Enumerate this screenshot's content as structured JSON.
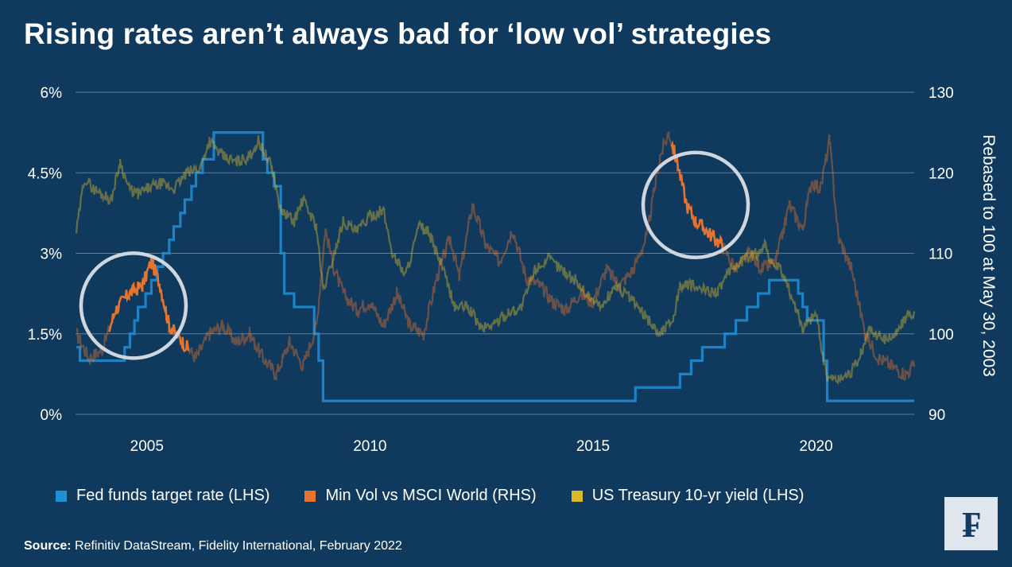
{
  "title": "Rising rates aren’t always bad for ‘low vol’ strategies",
  "source_label": "Source:",
  "source_text": "Refinitiv DataStream, Fidelity International, February 2022",
  "logo_glyph": "₣",
  "colors": {
    "background": "#0f3a5e",
    "gridline": "#5d7f9c",
    "fed_funds": "#1f8fd6",
    "min_vol": "#e8732d",
    "treasury": "#ddb92a",
    "circle": "#cfd6de"
  },
  "chart_data": {
    "type": "line",
    "x_axis": {
      "range": [
        2003.4,
        2022.2
      ],
      "ticks": [
        2005,
        2010,
        2015,
        2020
      ],
      "tick_labels": [
        "2005",
        "2010",
        "2015",
        "2020"
      ]
    },
    "y_left": {
      "range": [
        0,
        6
      ],
      "ticks": [
        0,
        1.5,
        3,
        4.5,
        6
      ],
      "tick_labels": [
        "0%",
        "1.5%",
        "3%",
        "4.5%",
        "6%"
      ]
    },
    "y_right": {
      "range": [
        90,
        130
      ],
      "ticks": [
        90,
        100,
        110,
        120,
        130
      ],
      "tick_labels": [
        "90",
        "100",
        "110",
        "120",
        "130"
      ],
      "label": "Rebased to 100 at May 30, 2003"
    },
    "grid": true,
    "legend_position": "bottom",
    "series": [
      {
        "name": "Fed funds target rate (LHS)",
        "axis": "left",
        "step": true,
        "x": [
          2003.42,
          2003.5,
          2004.5,
          2004.62,
          2004.72,
          2004.8,
          2004.97,
          2005.1,
          2005.23,
          2005.36,
          2005.5,
          2005.6,
          2005.75,
          2005.85,
          2006.0,
          2006.1,
          2006.25,
          2006.5,
          2007.6,
          2007.7,
          2007.85,
          2008.0,
          2008.08,
          2008.3,
          2008.75,
          2008.85,
          2008.95,
          2015.95,
          2016.95,
          2017.2,
          2017.45,
          2017.95,
          2018.2,
          2018.45,
          2018.7,
          2018.95,
          2019.6,
          2019.7,
          2019.8,
          2020.17,
          2020.25,
          2022.2
        ],
        "y": [
          1.25,
          1.0,
          1.25,
          1.5,
          1.75,
          2.0,
          2.25,
          2.5,
          2.75,
          3.0,
          3.25,
          3.5,
          3.75,
          4.0,
          4.25,
          4.5,
          4.75,
          5.25,
          4.75,
          4.5,
          4.25,
          3.0,
          2.25,
          2.0,
          1.5,
          1.0,
          0.25,
          0.5,
          0.75,
          1.0,
          1.25,
          1.5,
          1.75,
          2.0,
          2.25,
          2.5,
          2.25,
          2.0,
          1.75,
          1.0,
          0.25,
          0.25
        ]
      },
      {
        "name": "Min Vol vs MSCI World (RHS)",
        "axis": "right",
        "x": [
          2003.42,
          2003.7,
          2004.0,
          2004.3,
          2004.6,
          2004.9,
          2005.1,
          2005.3,
          2005.5,
          2005.8,
          2006.1,
          2006.4,
          2006.7,
          2007.0,
          2007.3,
          2007.6,
          2007.9,
          2008.2,
          2008.5,
          2008.8,
          2009.0,
          2009.2,
          2009.4,
          2009.7,
          2010.0,
          2010.3,
          2010.6,
          2010.9,
          2011.2,
          2011.5,
          2011.8,
          2012.0,
          2012.3,
          2012.6,
          2012.9,
          2013.2,
          2013.5,
          2013.8,
          2014.1,
          2014.4,
          2014.7,
          2015.0,
          2015.3,
          2015.6,
          2015.9,
          2016.2,
          2016.5,
          2016.7,
          2016.9,
          2017.1,
          2017.3,
          2017.5,
          2017.7,
          2017.9,
          2018.2,
          2018.5,
          2018.8,
          2019.1,
          2019.4,
          2019.7,
          2019.9,
          2020.1,
          2020.3,
          2020.5,
          2020.8,
          2021.1,
          2021.4,
          2021.7,
          2022.0,
          2022.2
        ],
        "y": [
          100,
          97,
          98,
          103,
          105,
          106,
          109,
          106,
          101,
          99,
          97,
          100,
          101,
          99,
          100,
          97,
          95,
          99,
          96,
          101,
          113,
          108,
          105,
          103,
          104,
          101,
          105,
          101,
          100,
          107,
          112,
          107,
          116,
          111,
          109,
          113,
          107,
          106,
          104,
          103,
          105,
          104,
          108,
          106,
          108,
          112,
          122,
          125,
          121,
          116,
          114,
          113,
          112,
          111,
          108,
          110,
          108,
          109,
          116,
          113,
          119,
          118,
          124,
          112,
          108,
          100,
          97,
          96,
          95,
          96
        ]
      },
      {
        "name": "US Treasury 10-yr yield (LHS)",
        "axis": "left",
        "x": [
          2003.42,
          2003.6,
          2003.8,
          2004.0,
          2004.2,
          2004.4,
          2004.6,
          2004.8,
          2005.0,
          2005.3,
          2005.6,
          2005.9,
          2006.2,
          2006.4,
          2006.7,
          2007.0,
          2007.3,
          2007.5,
          2007.8,
          2008.0,
          2008.3,
          2008.5,
          2008.8,
          2008.95,
          2009.1,
          2009.4,
          2009.7,
          2010.0,
          2010.3,
          2010.5,
          2010.8,
          2011.1,
          2011.3,
          2011.6,
          2011.9,
          2012.2,
          2012.5,
          2012.8,
          2013.1,
          2013.4,
          2013.7,
          2014.0,
          2014.3,
          2014.6,
          2014.9,
          2015.2,
          2015.5,
          2015.8,
          2016.1,
          2016.3,
          2016.5,
          2016.8,
          2016.95,
          2017.2,
          2017.5,
          2017.8,
          2018.1,
          2018.4,
          2018.7,
          2018.85,
          2019.0,
          2019.2,
          2019.5,
          2019.7,
          2019.9,
          2020.0,
          2020.15,
          2020.25,
          2020.5,
          2020.8,
          2021.0,
          2021.2,
          2021.5,
          2021.8,
          2022.0,
          2022.2
        ],
        "y": [
          3.4,
          4.4,
          4.2,
          4.1,
          4.0,
          4.7,
          4.2,
          4.1,
          4.2,
          4.3,
          4.2,
          4.5,
          4.6,
          5.1,
          4.8,
          4.7,
          4.8,
          5.1,
          4.6,
          3.8,
          3.6,
          4.0,
          3.5,
          2.3,
          2.7,
          3.6,
          3.4,
          3.7,
          3.8,
          3.0,
          2.6,
          3.5,
          3.4,
          2.8,
          2.0,
          2.0,
          1.6,
          1.7,
          1.9,
          2.0,
          2.7,
          2.9,
          2.7,
          2.5,
          2.2,
          2.0,
          2.4,
          2.2,
          1.9,
          1.7,
          1.5,
          1.8,
          2.4,
          2.4,
          2.3,
          2.3,
          2.7,
          2.9,
          3.0,
          3.2,
          2.8,
          2.7,
          2.1,
          1.6,
          1.8,
          1.9,
          1.1,
          0.7,
          0.65,
          0.8,
          1.1,
          1.6,
          1.4,
          1.5,
          1.8,
          1.9
        ]
      }
    ],
    "highlight_circles": [
      {
        "center_x": 2004.7,
        "center_y": 103.5
      },
      {
        "center_x": 2017.3,
        "center_y": 116.0
      }
    ]
  }
}
